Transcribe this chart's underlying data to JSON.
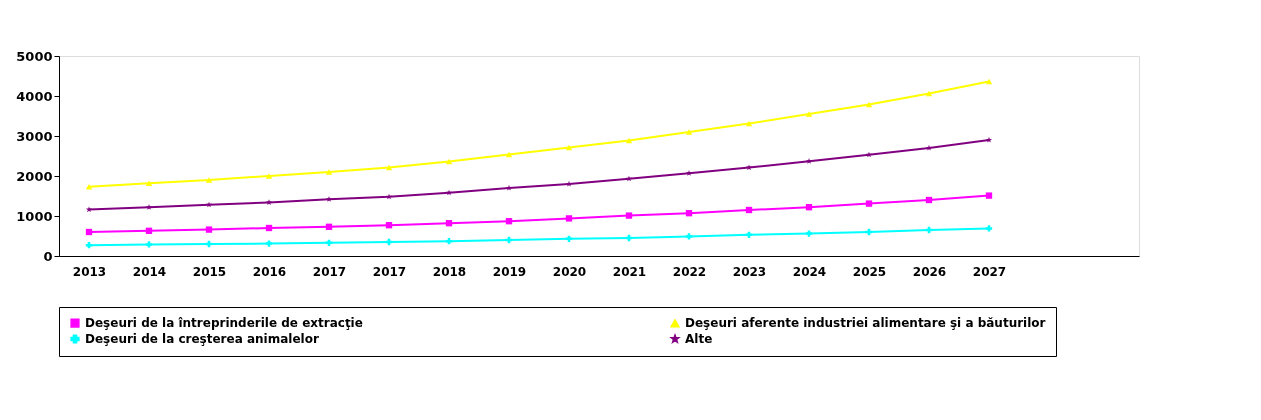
{
  "chart_data": {
    "type": "line",
    "categories": [
      "2013",
      "2014",
      "2015",
      "2016",
      "2017",
      "2017",
      "2018",
      "2019",
      "2020",
      "2021",
      "2022",
      "2023",
      "2024",
      "2025",
      "2026",
      "2027",
      null,
      null
    ],
    "series": [
      {
        "name": "Deşeuri de la  întreprinderile de extracţie",
        "color": "#ff00ff",
        "marker": "square",
        "values": [
          600,
          630,
          660,
          700,
          730,
          770,
          820,
          870,
          940,
          1010,
          1070,
          1150,
          1220,
          1310,
          1400,
          1510,
          null,
          null
        ]
      },
      {
        "name": "Deşeuri aferente industriei alimentare şi a băuturilor",
        "color": "#ffff00",
        "marker": "triangle",
        "values": [
          1730,
          1820,
          1900,
          2000,
          2100,
          2210,
          2360,
          2540,
          2710,
          2890,
          3100,
          3310,
          3550,
          3790,
          4060,
          4360,
          null,
          null
        ]
      },
      {
        "name": "Deşeuri de la creşterea animalelor",
        "color": "#00ffff",
        "marker": "cross",
        "values": [
          270,
          290,
          300,
          310,
          330,
          350,
          370,
          400,
          430,
          450,
          490,
          530,
          560,
          600,
          650,
          690,
          null,
          null
        ]
      },
      {
        "name": "Alte",
        "color": "#800080",
        "marker": "star",
        "values": [
          1160,
          1220,
          1280,
          1340,
          1420,
          1480,
          1580,
          1700,
          1800,
          1930,
          2070,
          2210,
          2370,
          2530,
          2700,
          2900,
          null,
          null
        ]
      }
    ],
    "ylim": [
      0,
      5000
    ],
    "yticks": [
      0,
      1000,
      2000,
      3000,
      4000,
      5000
    ],
    "grid": false,
    "legend": "bottom",
    "line_style": "solid"
  }
}
